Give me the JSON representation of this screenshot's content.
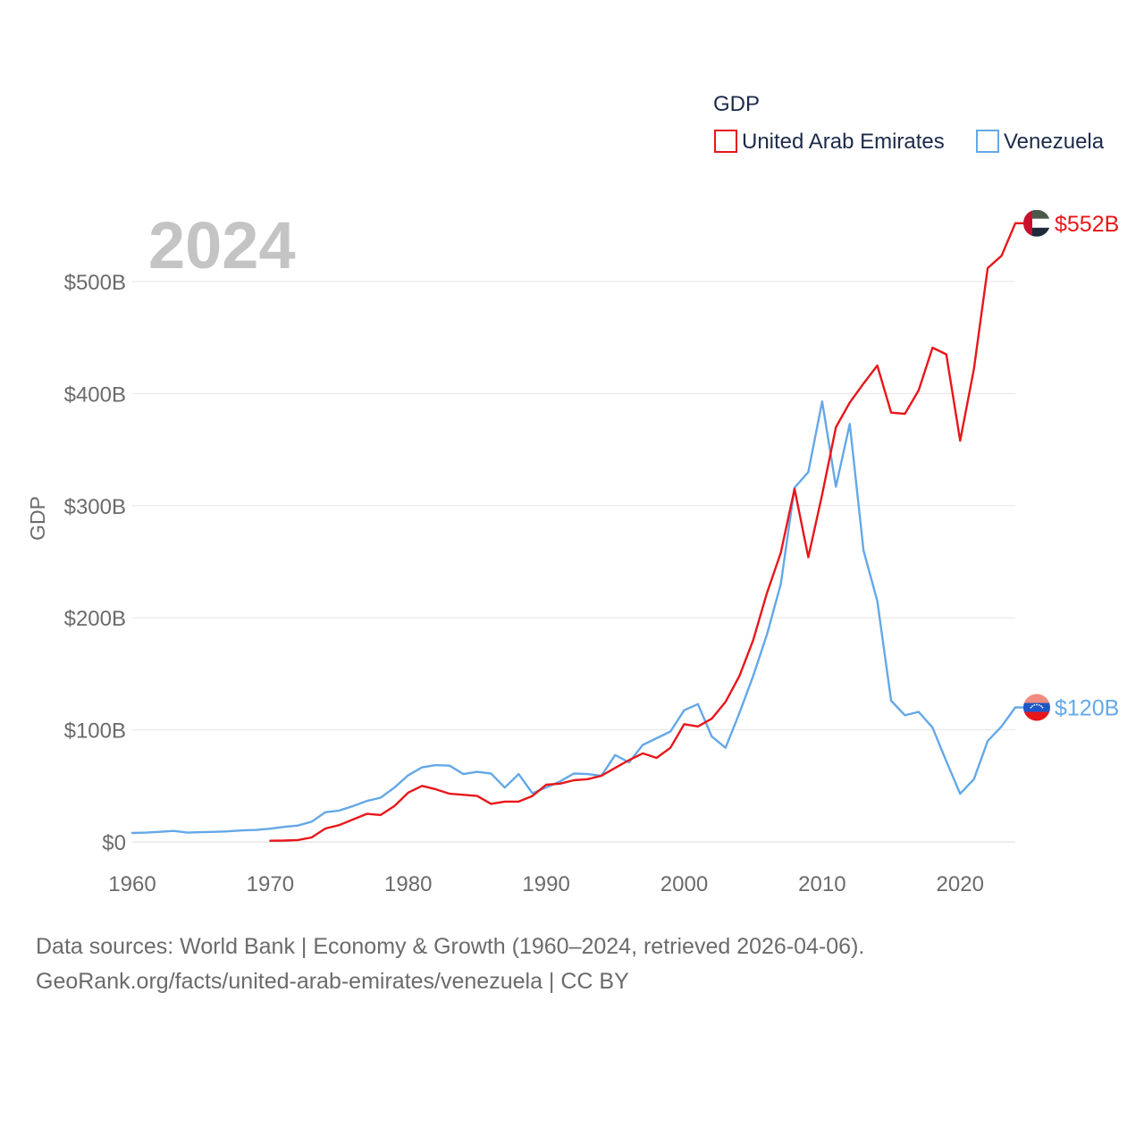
{
  "chart_data": {
    "type": "line",
    "title": "",
    "year_label": "2024",
    "ylabel": "GDP",
    "xlabel": "",
    "legend_title": "GDP",
    "legend_position": "top-right",
    "ylim": [
      0,
      560
    ],
    "xlim": [
      1960,
      2024
    ],
    "x_ticks": [
      1960,
      1970,
      1980,
      1990,
      2000,
      2010,
      2020
    ],
    "y_ticks": [
      {
        "value": 0,
        "label": "$0"
      },
      {
        "value": 100,
        "label": "$100B"
      },
      {
        "value": 200,
        "label": "$200B"
      },
      {
        "value": 300,
        "label": "$300B"
      },
      {
        "value": 400,
        "label": "$400B"
      },
      {
        "value": 500,
        "label": "$500B"
      }
    ],
    "units": "billions USD",
    "series": [
      {
        "name": "United Arab Emirates",
        "color": "#e8161b",
        "end_label": "$552B",
        "flag": "uae",
        "x": [
          1970,
          1971,
          1972,
          1973,
          1974,
          1975,
          1976,
          1977,
          1978,
          1979,
          1980,
          1981,
          1982,
          1983,
          1984,
          1985,
          1986,
          1987,
          1988,
          1989,
          1990,
          1991,
          1992,
          1993,
          1994,
          1995,
          1996,
          1997,
          1998,
          1999,
          2000,
          2001,
          2002,
          2003,
          2004,
          2005,
          2006,
          2007,
          2008,
          2009,
          2010,
          2011,
          2012,
          2013,
          2014,
          2015,
          2016,
          2017,
          2018,
          2019,
          2020,
          2021,
          2022,
          2023,
          2024
        ],
        "values": [
          1,
          1.2,
          1.7,
          4,
          12,
          15,
          20,
          25,
          24,
          32,
          44,
          50,
          47,
          43,
          42,
          41,
          34,
          36,
          36,
          41,
          51,
          52,
          55,
          56,
          59,
          66,
          73,
          79,
          75,
          84,
          105,
          103,
          110,
          125,
          148,
          180,
          222,
          258,
          315,
          254,
          310,
          370,
          392,
          409,
          425,
          383,
          382,
          403,
          441,
          435,
          358,
          422,
          512,
          523,
          552
        ]
      },
      {
        "name": "Venezuela",
        "color": "#64a8e8",
        "end_label": "$120B",
        "flag": "venezuela",
        "x": [
          1960,
          1961,
          1962,
          1963,
          1964,
          1965,
          1966,
          1967,
          1968,
          1969,
          1970,
          1971,
          1972,
          1973,
          1974,
          1975,
          1976,
          1977,
          1978,
          1979,
          1980,
          1981,
          1982,
          1983,
          1984,
          1985,
          1986,
          1987,
          1988,
          1989,
          1990,
          1991,
          1992,
          1993,
          1994,
          1995,
          1996,
          1997,
          1998,
          1999,
          2000,
          2001,
          2002,
          2003,
          2004,
          2005,
          2006,
          2007,
          2008,
          2009,
          2010,
          2011,
          2012,
          2013,
          2014,
          2015,
          2016,
          2017,
          2018,
          2019,
          2020,
          2021,
          2022,
          2023,
          2024
        ],
        "values": [
          8,
          8.3,
          9,
          9.8,
          8.3,
          8.7,
          9,
          9.5,
          10.3,
          10.7,
          11.8,
          13.4,
          14.6,
          18,
          26.5,
          28,
          32,
          36.5,
          39.5,
          48.5,
          59.5,
          66.5,
          68.5,
          68,
          60.5,
          62.5,
          61,
          48.5,
          60.5,
          43.5,
          48.5,
          54,
          61,
          60.5,
          59,
          77.5,
          71,
          86.5,
          92.5,
          98.5,
          117.5,
          123,
          94,
          84,
          115,
          148,
          185,
          230,
          316,
          330,
          393,
          317,
          373,
          260,
          215,
          126,
          113,
          116,
          102,
          72,
          43,
          56,
          90,
          103,
          120
        ]
      }
    ]
  },
  "footer": {
    "line1": "Data sources: World Bank | Economy & Growth (1960–2024, retrieved 2026-04-06).",
    "line2": "GeoRank.org/facts/united-arab-emirates/venezuela | CC BY"
  }
}
